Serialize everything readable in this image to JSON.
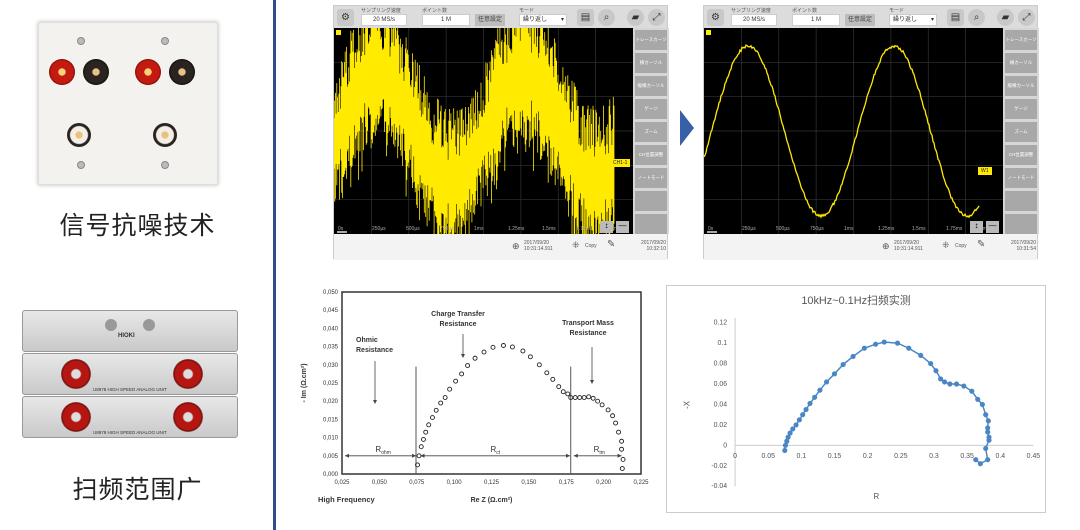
{
  "left": {
    "caption_noise": "信号抗噪技术",
    "caption_range": "扫频范围广",
    "module_brand": "HIOKI",
    "module_label": "U8978 HIGH SPEED ANALOG UNIT"
  },
  "scopes": [
    {
      "sampling_label": "サンプリング速度",
      "sampling_value": "20 MS/s",
      "points_label": "ポイント数",
      "points_value": "1 M",
      "custom_button": "任意設定",
      "mode_label": "モード",
      "mode_value": "繰り返し",
      "side_buttons": [
        "トレースカーソル",
        "横カーソル",
        "縦横カーソル",
        "ゲージ",
        "ズーム",
        "CH位置調整",
        "ノートモード"
      ],
      "channel_marker": "CH1-1",
      "ticks": [
        "0s",
        "250µs",
        "500µs",
        "750µs",
        "1ms",
        "1.25ms",
        "1.5ms",
        "1.75ms",
        "2ms"
      ],
      "trigger_time": "2017/09/20 10:31:14.911",
      "copy_label": "Copy",
      "clock": "2017/09/20 10:32:10",
      "noisy": true
    },
    {
      "sampling_label": "サンプリング速度",
      "sampling_value": "20 MS/s",
      "points_label": "ポイント数",
      "points_value": "1 M",
      "custom_button": "任意設定",
      "mode_label": "モード",
      "mode_value": "繰り返し",
      "side_buttons": [
        "トレースカーソル",
        "横カーソル",
        "縦横カーソル",
        "ゲージ",
        "ズーム",
        "CH位置調整",
        "ノートモード"
      ],
      "channel_marker": "W1",
      "ticks": [
        "0s",
        "250µs",
        "500µs",
        "750µs",
        "1ms",
        "1.25ms",
        "1.5ms",
        "1.75ms",
        "2ms"
      ],
      "trigger_time": "2017/09/20 10:31:14.911",
      "copy_label": "Copy",
      "clock": "2017/09/20 10:31:54",
      "noisy": false
    }
  ],
  "colors": {
    "accent": "#2f4d8a",
    "trace": "#ffea00",
    "series": "#4a86c5"
  },
  "chart_data": [
    {
      "type": "scatter",
      "title": "",
      "xlabel": "Re Z (Ω.cm²)",
      "ylabel": "- Im (Ω.cm²)",
      "xlim": [
        0.025,
        0.225
      ],
      "ylim": [
        0,
        0.05
      ],
      "xticks": [
        "0,025",
        "0,050",
        "0,075",
        "0,100",
        "0,125",
        "0,150",
        "0,175",
        "0,200",
        "0,225"
      ],
      "yticks": [
        "0,000",
        "0,005",
        "0,010",
        "0,015",
        "0,020",
        "0,025",
        "0,030",
        "0,035",
        "0,040",
        "0,045",
        "0,050"
      ],
      "annotations": {
        "ohmic": [
          "Ohmic",
          "Resistance"
        ],
        "charge": [
          "Charge Transfer",
          "Resistance"
        ],
        "mass": [
          "Transport Mass",
          "Resistance"
        ],
        "r_ohm": "R",
        "r_ohm_sub": "ohm",
        "r_ct": "R",
        "r_ct_sub": "ct",
        "r_tm": "R",
        "r_tm_sub": "tm",
        "high_freq": "High Frequency"
      },
      "points": [
        [
          0.0755,
          0.0025
        ],
        [
          0.0765,
          0.005
        ],
        [
          0.078,
          0.0075
        ],
        [
          0.0795,
          0.0095
        ],
        [
          0.081,
          0.0115
        ],
        [
          0.083,
          0.0135
        ],
        [
          0.0855,
          0.0155
        ],
        [
          0.088,
          0.0175
        ],
        [
          0.091,
          0.0195
        ],
        [
          0.094,
          0.021
        ],
        [
          0.097,
          0.0233
        ],
        [
          0.101,
          0.0255
        ],
        [
          0.105,
          0.0275
        ],
        [
          0.109,
          0.0298
        ],
        [
          0.114,
          0.0318
        ],
        [
          0.12,
          0.0335
        ],
        [
          0.126,
          0.0348
        ],
        [
          0.133,
          0.0353
        ],
        [
          0.139,
          0.0349
        ],
        [
          0.146,
          0.0338
        ],
        [
          0.151,
          0.0322
        ],
        [
          0.157,
          0.03
        ],
        [
          0.162,
          0.0278
        ],
        [
          0.166,
          0.026
        ],
        [
          0.17,
          0.024
        ],
        [
          0.173,
          0.0226
        ],
        [
          0.176,
          0.022
        ],
        [
          0.178,
          0.021
        ],
        [
          0.181,
          0.021
        ],
        [
          0.184,
          0.021
        ],
        [
          0.187,
          0.021
        ],
        [
          0.19,
          0.0212
        ],
        [
          0.193,
          0.0208
        ],
        [
          0.196,
          0.02
        ],
        [
          0.199,
          0.019
        ],
        [
          0.203,
          0.0176
        ],
        [
          0.206,
          0.016
        ],
        [
          0.208,
          0.014
        ],
        [
          0.21,
          0.0115
        ],
        [
          0.212,
          0.009
        ],
        [
          0.212,
          0.0068
        ],
        [
          0.213,
          0.004
        ],
        [
          0.2125,
          0.0015
        ]
      ]
    },
    {
      "type": "line",
      "title": "10kHz~0.1Hz扫频实测",
      "xlabel": "R",
      "ylabel": "-X",
      "xlim": [
        0,
        0.45
      ],
      "ylim": [
        -0.04,
        0.12
      ],
      "xticks": [
        "0",
        "0.05",
        "0.1",
        "0.15",
        "0.2",
        "0.25",
        "0.3",
        "0.35",
        "0.4",
        "0.45"
      ],
      "yticks": [
        "-0.04",
        "-0.02",
        "0",
        "0.02",
        "0.04",
        "0.06",
        "0.08",
        "0.1",
        "0.12"
      ],
      "points": [
        [
          0.075,
          -0.005
        ],
        [
          0.076,
          0
        ],
        [
          0.078,
          0.004
        ],
        [
          0.08,
          0.008
        ],
        [
          0.083,
          0.012
        ],
        [
          0.087,
          0.016
        ],
        [
          0.092,
          0.02
        ],
        [
          0.097,
          0.025
        ],
        [
          0.102,
          0.03
        ],
        [
          0.107,
          0.035
        ],
        [
          0.113,
          0.041
        ],
        [
          0.12,
          0.047
        ],
        [
          0.128,
          0.054
        ],
        [
          0.138,
          0.062
        ],
        [
          0.15,
          0.07
        ],
        [
          0.163,
          0.079
        ],
        [
          0.178,
          0.087
        ],
        [
          0.195,
          0.095
        ],
        [
          0.212,
          0.099
        ],
        [
          0.225,
          0.101
        ],
        [
          0.245,
          0.1
        ],
        [
          0.262,
          0.095
        ],
        [
          0.28,
          0.088
        ],
        [
          0.295,
          0.08
        ],
        [
          0.303,
          0.073
        ],
        [
          0.31,
          0.065
        ],
        [
          0.316,
          0.062
        ],
        [
          0.324,
          0.06
        ],
        [
          0.334,
          0.06
        ],
        [
          0.345,
          0.058
        ],
        [
          0.357,
          0.053
        ],
        [
          0.366,
          0.045
        ],
        [
          0.373,
          0.04
        ],
        [
          0.378,
          0.03
        ],
        [
          0.382,
          0.024
        ],
        [
          0.381,
          0.017
        ],
        [
          0.381,
          0.013
        ],
        [
          0.383,
          0.008
        ],
        [
          0.383,
          0.005
        ],
        [
          0.378,
          -0.003
        ],
        [
          0.381,
          -0.014
        ],
        [
          0.37,
          -0.018
        ],
        [
          0.363,
          -0.014
        ]
      ]
    }
  ]
}
